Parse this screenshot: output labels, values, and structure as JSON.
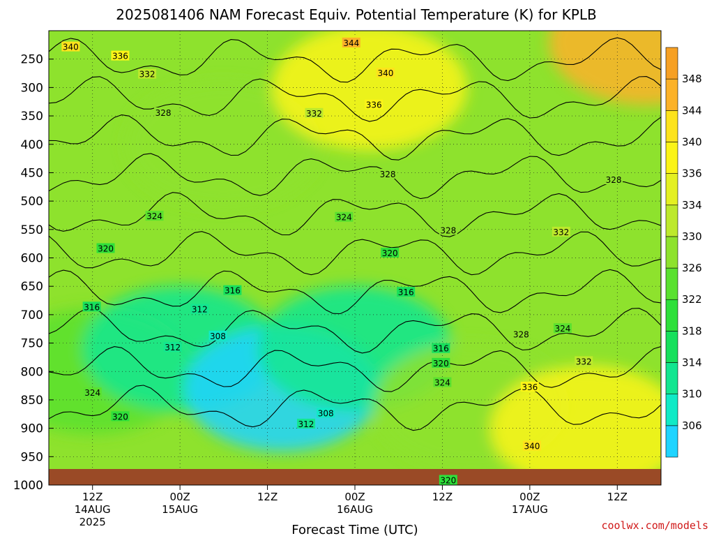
{
  "title": "2025081406 NAM Forecast Equiv. Potential Temperature (K) for KPLB",
  "xlabel": "Forecast Time (UTC)",
  "credit": "coolwx.com/models",
  "colors": {
    "ground": "#9a4a26",
    "contour": "#000000",
    "grid": "#222222"
  },
  "chart_data": {
    "type": "heatmap",
    "title": "2025081406 NAM Forecast Equiv. Potential Temperature (K) for KPLB",
    "xlabel": "Forecast Time (UTC)",
    "ylabel": "",
    "y_axis": {
      "ticks": [
        250,
        300,
        350,
        400,
        450,
        500,
        550,
        600,
        650,
        700,
        750,
        800,
        850,
        900,
        950,
        1000
      ],
      "tick_labels": [
        "250",
        "300",
        "350",
        "400",
        "450",
        "500",
        "550",
        "600",
        "650",
        "700",
        "750",
        "800",
        "850",
        "900",
        "950",
        "1000"
      ],
      "range_hPa": [
        200,
        1000
      ]
    },
    "x_axis": {
      "range_hours": [
        6,
        90
      ],
      "ticks": [
        {
          "hour": 12,
          "line1": "12Z",
          "line2": "14AUG",
          "line3": "2025"
        },
        {
          "hour": 24,
          "line1": "00Z",
          "line2": "15AUG",
          "line3": ""
        },
        {
          "hour": 36,
          "line1": "12Z",
          "line2": "",
          "line3": ""
        },
        {
          "hour": 48,
          "line1": "00Z",
          "line2": "16AUG",
          "line3": ""
        },
        {
          "hour": 60,
          "line1": "12Z",
          "line2": "",
          "line3": ""
        },
        {
          "hour": 72,
          "line1": "00Z",
          "line2": "17AUG",
          "line3": ""
        },
        {
          "hour": 84,
          "line1": "12Z",
          "line2": "",
          "line3": ""
        }
      ]
    },
    "colorbar": {
      "levels": [
        306,
        310,
        314,
        318,
        322,
        326,
        330,
        334,
        336,
        340,
        344,
        348
      ],
      "colors": [
        "#1fd4ff",
        "#10eac6",
        "#13e690",
        "#17e05c",
        "#2ee03a",
        "#5ae12f",
        "#8ee22d",
        "#bde92c",
        "#e4f022",
        "#fbf417",
        "#fde31c",
        "#fcb228",
        "#f6a024"
      ]
    },
    "contour_levels": [
      308,
      312,
      316,
      320,
      324,
      328,
      332,
      336,
      340,
      344
    ],
    "field_samples_K": [
      {
        "hour": 12,
        "hPa": 800,
        "value": 322
      },
      {
        "hour": 24,
        "hPa": 760,
        "value": 310
      },
      {
        "hour": 38,
        "hPa": 830,
        "value": 305
      },
      {
        "hour": 48,
        "hPa": 760,
        "value": 312
      },
      {
        "hour": 64,
        "hPa": 860,
        "value": 326
      },
      {
        "hour": 80,
        "hPa": 900,
        "value": 336
      },
      {
        "hour": 30,
        "hPa": 400,
        "value": 328
      },
      {
        "hour": 50,
        "hPa": 300,
        "value": 338
      },
      {
        "hour": 88,
        "hPa": 220,
        "value": 346
      }
    ],
    "contour_labels": [
      {
        "text": "344",
        "hour": 47.5,
        "hPa": 222
      },
      {
        "text": "340",
        "hour": 9.0,
        "hPa": 229
      },
      {
        "text": "336",
        "hour": 15.8,
        "hPa": 245
      },
      {
        "text": "332",
        "hour": 19.5,
        "hPa": 277
      },
      {
        "text": "340",
        "hour": 52.2,
        "hPa": 275
      },
      {
        "text": "336",
        "hour": 50.6,
        "hPa": 331
      },
      {
        "text": "332",
        "hour": 42.4,
        "hPa": 346
      },
      {
        "text": "328",
        "hour": 21.7,
        "hPa": 345
      },
      {
        "text": "328",
        "hour": 52.5,
        "hPa": 453
      },
      {
        "text": "328",
        "hour": 83.5,
        "hPa": 463
      },
      {
        "text": "324",
        "hour": 20.5,
        "hPa": 527
      },
      {
        "text": "324",
        "hour": 46.5,
        "hPa": 529
      },
      {
        "text": "328",
        "hour": 60.8,
        "hPa": 552
      },
      {
        "text": "332",
        "hour": 76.3,
        "hPa": 555
      },
      {
        "text": "320",
        "hour": 13.8,
        "hPa": 584
      },
      {
        "text": "320",
        "hour": 52.8,
        "hPa": 592
      },
      {
        "text": "316",
        "hour": 31.2,
        "hPa": 658
      },
      {
        "text": "316",
        "hour": 11.9,
        "hPa": 687
      },
      {
        "text": "316",
        "hour": 55.0,
        "hPa": 661
      },
      {
        "text": "312",
        "hour": 26.7,
        "hPa": 691
      },
      {
        "text": "308",
        "hour": 29.2,
        "hPa": 738
      },
      {
        "text": "312",
        "hour": 23.0,
        "hPa": 758
      },
      {
        "text": "316",
        "hour": 59.8,
        "hPa": 760
      },
      {
        "text": "320",
        "hour": 59.8,
        "hPa": 786
      },
      {
        "text": "324",
        "hour": 60.0,
        "hPa": 820
      },
      {
        "text": "328",
        "hour": 70.8,
        "hPa": 735
      },
      {
        "text": "324",
        "hour": 76.5,
        "hPa": 725
      },
      {
        "text": "332",
        "hour": 79.4,
        "hPa": 783
      },
      {
        "text": "336",
        "hour": 72.0,
        "hPa": 828
      },
      {
        "text": "324",
        "hour": 12.0,
        "hPa": 838
      },
      {
        "text": "320",
        "hour": 15.8,
        "hPa": 880
      },
      {
        "text": "308",
        "hour": 44.0,
        "hPa": 874
      },
      {
        "text": "312",
        "hour": 41.3,
        "hPa": 893
      },
      {
        "text": "340",
        "hour": 72.3,
        "hPa": 932
      },
      {
        "text": "320",
        "hour": 60.8,
        "hPa": 992
      }
    ]
  }
}
